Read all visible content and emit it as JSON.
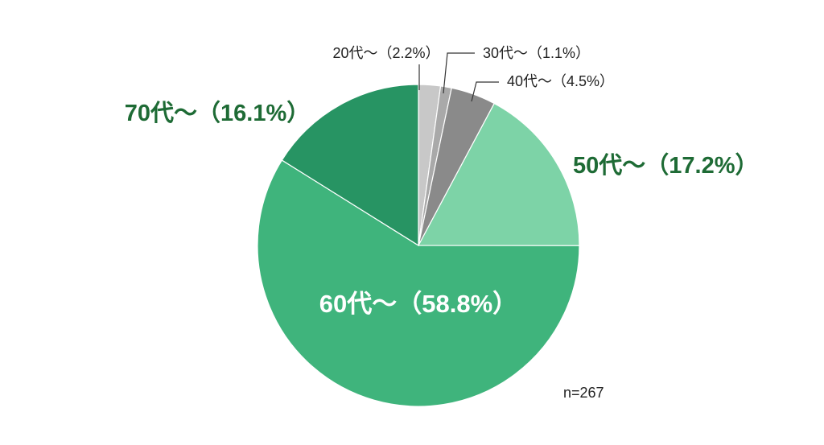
{
  "chart_data": {
    "type": "pie",
    "categories": [
      "20代～",
      "30代～",
      "40代～",
      "50代～",
      "60代～",
      "70代～"
    ],
    "values": [
      2.2,
      1.1,
      4.5,
      17.2,
      58.8,
      16.1
    ],
    "value_labels": [
      "（2.2%）",
      "（1.1%）",
      "（4.5%）",
      "（17.2%）",
      "（58.8%）",
      "（16.1%）"
    ],
    "colors": [
      "#c8c8c8",
      "#a9a9a9",
      "#8a8a8a",
      "#7dd3a7",
      "#3fb47c",
      "#279463"
    ],
    "annotation": "n=267"
  }
}
